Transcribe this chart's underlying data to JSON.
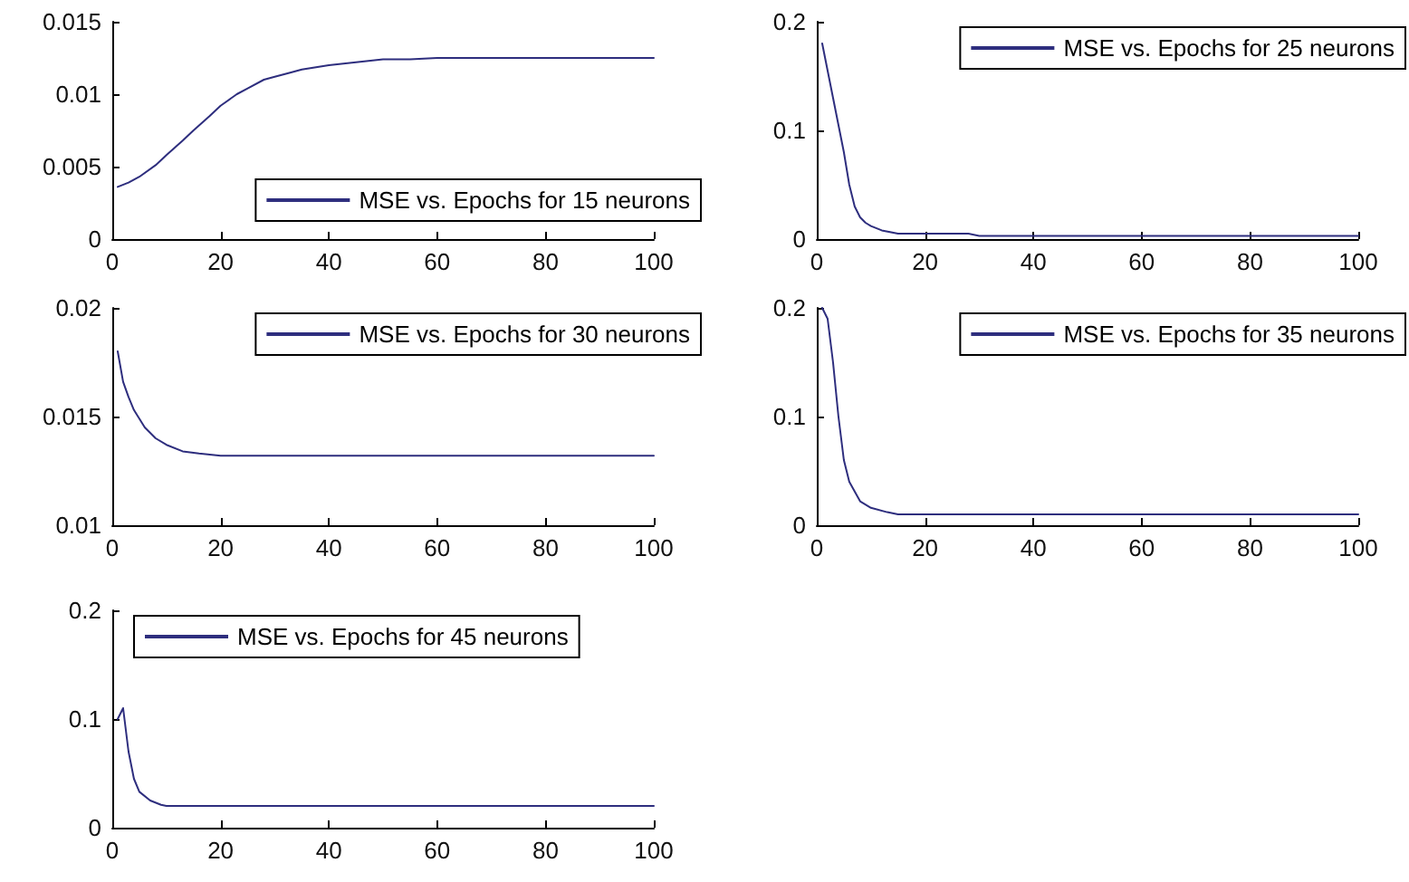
{
  "chart_data": [
    {
      "type": "line",
      "x": [
        1,
        3,
        5,
        8,
        10,
        13,
        15,
        18,
        20,
        23,
        25,
        28,
        30,
        33,
        35,
        40,
        45,
        50,
        55,
        60,
        80,
        100
      ],
      "series": [
        {
          "name": "MSE vs. Epochs for 15 neurons",
          "color": "#2e2e7e",
          "values": [
            0.0036,
            0.0039,
            0.0043,
            0.0051,
            0.0058,
            0.0068,
            0.0075,
            0.0085,
            0.0092,
            0.01,
            0.0104,
            0.011,
            0.0112,
            0.0115,
            0.0117,
            0.012,
            0.0122,
            0.0124,
            0.0124,
            0.0125,
            0.0125,
            0.0125
          ]
        }
      ],
      "xlim": [
        0,
        100
      ],
      "xticks": [
        0,
        20,
        40,
        60,
        80,
        100
      ],
      "ylim": [
        0,
        0.015
      ],
      "yticks": [
        0,
        0.005,
        0.01,
        0.015
      ],
      "legend": "bottom right",
      "marker": "none",
      "line_style": "solid"
    },
    {
      "type": "line",
      "x": [
        1,
        3,
        5,
        6,
        7,
        8,
        9,
        10,
        12,
        15,
        20,
        28,
        30,
        50,
        100
      ],
      "series": [
        {
          "name": "MSE vs. Epochs for 25 neurons",
          "color": "#2e2e7e",
          "values": [
            0.18,
            0.13,
            0.08,
            0.05,
            0.03,
            0.02,
            0.015,
            0.012,
            0.008,
            0.005,
            0.005,
            0.005,
            0.003,
            0.003,
            0.003
          ]
        }
      ],
      "xlim": [
        0,
        100
      ],
      "xticks": [
        0,
        20,
        40,
        60,
        80,
        100
      ],
      "ylim": [
        0,
        0.2
      ],
      "yticks": [
        0,
        0.1,
        0.2
      ],
      "legend": "top right",
      "marker": "none",
      "line_style": "solid"
    },
    {
      "type": "line",
      "x": [
        1,
        2,
        3,
        4,
        6,
        8,
        10,
        13,
        16,
        20,
        30,
        100
      ],
      "series": [
        {
          "name": "MSE vs. Epochs for 30 neurons",
          "color": "#2e2e7e",
          "values": [
            0.018,
            0.0166,
            0.0159,
            0.0153,
            0.0145,
            0.014,
            0.0137,
            0.0134,
            0.0133,
            0.0132,
            0.0132,
            0.0132
          ]
        }
      ],
      "xlim": [
        0,
        100
      ],
      "xticks": [
        0,
        20,
        40,
        60,
        80,
        100
      ],
      "ylim": [
        0.01,
        0.02
      ],
      "yticks": [
        0.01,
        0.015,
        0.02
      ],
      "legend": "top right",
      "marker": "none",
      "line_style": "solid"
    },
    {
      "type": "line",
      "x": [
        1,
        2,
        3,
        4,
        5,
        6,
        8,
        10,
        13,
        15,
        20,
        100
      ],
      "series": [
        {
          "name": "MSE vs. Epochs for 35 neurons",
          "color": "#2e2e7e",
          "values": [
            0.2,
            0.19,
            0.15,
            0.1,
            0.06,
            0.04,
            0.022,
            0.016,
            0.012,
            0.01,
            0.01,
            0.01
          ]
        }
      ],
      "xlim": [
        0,
        100
      ],
      "xticks": [
        0,
        20,
        40,
        60,
        80,
        100
      ],
      "ylim": [
        0,
        0.2
      ],
      "yticks": [
        0,
        0.1,
        0.2
      ],
      "legend": "top right",
      "marker": "none",
      "line_style": "solid"
    },
    {
      "type": "line",
      "x": [
        1,
        2,
        3,
        4,
        5,
        7,
        9,
        10,
        20,
        100
      ],
      "series": [
        {
          "name": "MSE vs. Epochs for 45 neurons",
          "color": "#2e2e7e",
          "values": [
            0.1,
            0.11,
            0.07,
            0.045,
            0.033,
            0.025,
            0.021,
            0.02,
            0.02,
            0.02
          ]
        }
      ],
      "xlim": [
        0,
        100
      ],
      "xticks": [
        0,
        20,
        40,
        60,
        80,
        100
      ],
      "ylim": [
        0,
        0.2
      ],
      "yticks": [
        0,
        0.1,
        0.2
      ],
      "legend": "top",
      "marker": "none",
      "line_style": "solid"
    }
  ]
}
